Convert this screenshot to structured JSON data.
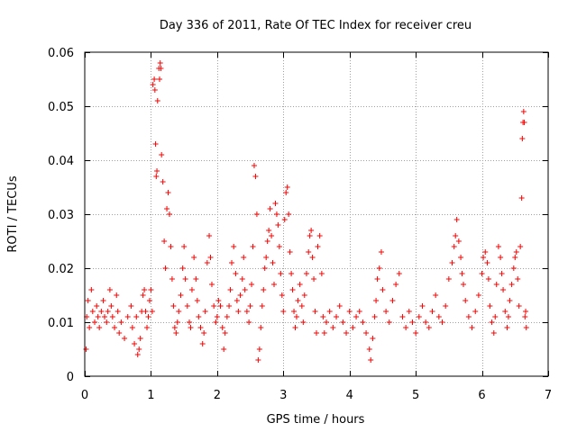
{
  "colors": {
    "series": "#ff0000",
    "grid": "#a0a0a0",
    "frame": "#000000"
  },
  "chart_data": {
    "type": "scatter",
    "title": "Day 336 of 2011, Rate Of TEC Index for receiver creu",
    "xlabel": "GPS time / hours",
    "ylabel": "ROTI / TECUs",
    "xlim": [
      0,
      7
    ],
    "ylim": [
      0,
      0.06
    ],
    "xticks": [
      "0",
      "1",
      "2",
      "3",
      "4",
      "5",
      "6",
      "7"
    ],
    "yticks": [
      "0",
      "0.01",
      "0.02",
      "0.03",
      "0.04",
      "0.05",
      "0.06"
    ],
    "grid": true,
    "marker": "+",
    "series": [
      {
        "points": [
          [
            0.02,
            0.005
          ],
          [
            0.03,
            0.011
          ],
          [
            0.05,
            0.014
          ],
          [
            0.07,
            0.009
          ],
          [
            0.1,
            0.016
          ],
          [
            0.12,
            0.012
          ],
          [
            0.15,
            0.01
          ],
          [
            0.18,
            0.013
          ],
          [
            0.2,
            0.011
          ],
          [
            0.22,
            0.009
          ],
          [
            0.25,
            0.012
          ],
          [
            0.28,
            0.014
          ],
          [
            0.3,
            0.011
          ],
          [
            0.33,
            0.01
          ],
          [
            0.35,
            0.012
          ],
          [
            0.38,
            0.016
          ],
          [
            0.4,
            0.013
          ],
          [
            0.42,
            0.011
          ],
          [
            0.45,
            0.009
          ],
          [
            0.48,
            0.015
          ],
          [
            0.5,
            0.012
          ],
          [
            0.52,
            0.008
          ],
          [
            0.55,
            0.01
          ],
          [
            0.6,
            0.007
          ],
          [
            0.65,
            0.011
          ],
          [
            0.7,
            0.013
          ],
          [
            0.72,
            0.009
          ],
          [
            0.75,
            0.006
          ],
          [
            0.78,
            0.011
          ],
          [
            0.8,
            0.004
          ],
          [
            0.82,
            0.005
          ],
          [
            0.84,
            0.007
          ],
          [
            0.86,
            0.012
          ],
          [
            0.88,
            0.015
          ],
          [
            0.9,
            0.016
          ],
          [
            0.92,
            0.012
          ],
          [
            0.94,
            0.009
          ],
          [
            0.96,
            0.011
          ],
          [
            0.98,
            0.014
          ],
          [
            1.0,
            0.016
          ],
          [
            1.02,
            0.012
          ],
          [
            1.03,
            0.054
          ],
          [
            1.05,
            0.055
          ],
          [
            1.06,
            0.053
          ],
          [
            1.07,
            0.043
          ],
          [
            1.08,
            0.037
          ],
          [
            1.09,
            0.038
          ],
          [
            1.1,
            0.051
          ],
          [
            1.12,
            0.057
          ],
          [
            1.13,
            0.055
          ],
          [
            1.14,
            0.058
          ],
          [
            1.15,
            0.057
          ],
          [
            1.16,
            0.041
          ],
          [
            1.18,
            0.036
          ],
          [
            1.2,
            0.025
          ],
          [
            1.22,
            0.02
          ],
          [
            1.24,
            0.031
          ],
          [
            1.26,
            0.034
          ],
          [
            1.28,
            0.03
          ],
          [
            1.3,
            0.024
          ],
          [
            1.32,
            0.018
          ],
          [
            1.34,
            0.013
          ],
          [
            1.36,
            0.009
          ],
          [
            1.38,
            0.008
          ],
          [
            1.4,
            0.01
          ],
          [
            1.42,
            0.012
          ],
          [
            1.45,
            0.015
          ],
          [
            1.48,
            0.02
          ],
          [
            1.5,
            0.024
          ],
          [
            1.52,
            0.018
          ],
          [
            1.55,
            0.013
          ],
          [
            1.58,
            0.01
          ],
          [
            1.6,
            0.009
          ],
          [
            1.62,
            0.016
          ],
          [
            1.65,
            0.022
          ],
          [
            1.68,
            0.018
          ],
          [
            1.7,
            0.014
          ],
          [
            1.72,
            0.011
          ],
          [
            1.75,
            0.009
          ],
          [
            1.78,
            0.006
          ],
          [
            1.8,
            0.008
          ],
          [
            1.82,
            0.012
          ],
          [
            1.85,
            0.021
          ],
          [
            1.88,
            0.026
          ],
          [
            1.9,
            0.022
          ],
          [
            1.92,
            0.017
          ],
          [
            1.95,
            0.013
          ],
          [
            1.98,
            0.01
          ],
          [
            2.0,
            0.011
          ],
          [
            2.02,
            0.014
          ],
          [
            2.05,
            0.013
          ],
          [
            2.08,
            0.009
          ],
          [
            2.1,
            0.005
          ],
          [
            2.12,
            0.008
          ],
          [
            2.15,
            0.011
          ],
          [
            2.18,
            0.013
          ],
          [
            2.2,
            0.016
          ],
          [
            2.22,
            0.021
          ],
          [
            2.25,
            0.024
          ],
          [
            2.28,
            0.019
          ],
          [
            2.3,
            0.014
          ],
          [
            2.32,
            0.012
          ],
          [
            2.35,
            0.015
          ],
          [
            2.38,
            0.018
          ],
          [
            2.4,
            0.022
          ],
          [
            2.42,
            0.016
          ],
          [
            2.45,
            0.012
          ],
          [
            2.48,
            0.01
          ],
          [
            2.5,
            0.013
          ],
          [
            2.52,
            0.017
          ],
          [
            2.54,
            0.024
          ],
          [
            2.56,
            0.039
          ],
          [
            2.58,
            0.037
          ],
          [
            2.6,
            0.03
          ],
          [
            2.62,
            0.003
          ],
          [
            2.64,
            0.005
          ],
          [
            2.66,
            0.009
          ],
          [
            2.68,
            0.013
          ],
          [
            2.7,
            0.016
          ],
          [
            2.72,
            0.02
          ],
          [
            2.74,
            0.022
          ],
          [
            2.76,
            0.025
          ],
          [
            2.78,
            0.027
          ],
          [
            2.8,
            0.031
          ],
          [
            2.82,
            0.026
          ],
          [
            2.84,
            0.021
          ],
          [
            2.86,
            0.017
          ],
          [
            2.88,
            0.032
          ],
          [
            2.9,
            0.03
          ],
          [
            2.92,
            0.028
          ],
          [
            2.94,
            0.024
          ],
          [
            2.96,
            0.019
          ],
          [
            2.98,
            0.015
          ],
          [
            3.0,
            0.012
          ],
          [
            3.02,
            0.029
          ],
          [
            3.04,
            0.034
          ],
          [
            3.06,
            0.035
          ],
          [
            3.08,
            0.03
          ],
          [
            3.1,
            0.023
          ],
          [
            3.12,
            0.019
          ],
          [
            3.14,
            0.016
          ],
          [
            3.16,
            0.012
          ],
          [
            3.18,
            0.009
          ],
          [
            3.2,
            0.011
          ],
          [
            3.22,
            0.014
          ],
          [
            3.25,
            0.017
          ],
          [
            3.28,
            0.013
          ],
          [
            3.3,
            0.01
          ],
          [
            3.32,
            0.015
          ],
          [
            3.35,
            0.019
          ],
          [
            3.38,
            0.023
          ],
          [
            3.4,
            0.026
          ],
          [
            3.42,
            0.027
          ],
          [
            3.44,
            0.022
          ],
          [
            3.46,
            0.018
          ],
          [
            3.48,
            0.012
          ],
          [
            3.5,
            0.008
          ],
          [
            3.52,
            0.024
          ],
          [
            3.55,
            0.026
          ],
          [
            3.58,
            0.019
          ],
          [
            3.6,
            0.011
          ],
          [
            3.62,
            0.008
          ],
          [
            3.65,
            0.01
          ],
          [
            3.7,
            0.012
          ],
          [
            3.75,
            0.009
          ],
          [
            3.8,
            0.011
          ],
          [
            3.85,
            0.013
          ],
          [
            3.9,
            0.01
          ],
          [
            3.95,
            0.008
          ],
          [
            4.0,
            0.012
          ],
          [
            4.05,
            0.009
          ],
          [
            4.1,
            0.011
          ],
          [
            4.15,
            0.012
          ],
          [
            4.2,
            0.01
          ],
          [
            4.25,
            0.008
          ],
          [
            4.3,
            0.005
          ],
          [
            4.32,
            0.003
          ],
          [
            4.35,
            0.007
          ],
          [
            4.38,
            0.011
          ],
          [
            4.4,
            0.014
          ],
          [
            4.42,
            0.018
          ],
          [
            4.45,
            0.02
          ],
          [
            4.48,
            0.023
          ],
          [
            4.5,
            0.016
          ],
          [
            4.55,
            0.012
          ],
          [
            4.6,
            0.01
          ],
          [
            4.65,
            0.014
          ],
          [
            4.7,
            0.017
          ],
          [
            4.75,
            0.019
          ],
          [
            4.8,
            0.011
          ],
          [
            4.85,
            0.009
          ],
          [
            4.9,
            0.012
          ],
          [
            4.95,
            0.01
          ],
          [
            5.0,
            0.008
          ],
          [
            5.05,
            0.011
          ],
          [
            5.1,
            0.013
          ],
          [
            5.15,
            0.01
          ],
          [
            5.2,
            0.009
          ],
          [
            5.25,
            0.012
          ],
          [
            5.3,
            0.015
          ],
          [
            5.35,
            0.011
          ],
          [
            5.4,
            0.01
          ],
          [
            5.45,
            0.013
          ],
          [
            5.5,
            0.018
          ],
          [
            5.55,
            0.021
          ],
          [
            5.58,
            0.024
          ],
          [
            5.6,
            0.026
          ],
          [
            5.62,
            0.029
          ],
          [
            5.65,
            0.025
          ],
          [
            5.68,
            0.022
          ],
          [
            5.7,
            0.019
          ],
          [
            5.72,
            0.017
          ],
          [
            5.75,
            0.014
          ],
          [
            5.8,
            0.011
          ],
          [
            5.85,
            0.009
          ],
          [
            5.9,
            0.012
          ],
          [
            5.95,
            0.015
          ],
          [
            6.0,
            0.019
          ],
          [
            6.02,
            0.022
          ],
          [
            6.05,
            0.023
          ],
          [
            6.08,
            0.021
          ],
          [
            6.1,
            0.018
          ],
          [
            6.12,
            0.013
          ],
          [
            6.15,
            0.01
          ],
          [
            6.18,
            0.008
          ],
          [
            6.2,
            0.011
          ],
          [
            6.22,
            0.017
          ],
          [
            6.25,
            0.024
          ],
          [
            6.28,
            0.022
          ],
          [
            6.3,
            0.019
          ],
          [
            6.32,
            0.016
          ],
          [
            6.35,
            0.012
          ],
          [
            6.38,
            0.009
          ],
          [
            6.4,
            0.011
          ],
          [
            6.42,
            0.014
          ],
          [
            6.45,
            0.017
          ],
          [
            6.48,
            0.02
          ],
          [
            6.5,
            0.022
          ],
          [
            6.52,
            0.023
          ],
          [
            6.54,
            0.018
          ],
          [
            6.56,
            0.013
          ],
          [
            6.58,
            0.024
          ],
          [
            6.6,
            0.033
          ],
          [
            6.61,
            0.044
          ],
          [
            6.62,
            0.047
          ],
          [
            6.63,
            0.049
          ],
          [
            6.64,
            0.047
          ],
          [
            6.65,
            0.011
          ],
          [
            6.66,
            0.012
          ],
          [
            6.67,
            0.009
          ]
        ]
      }
    ]
  }
}
